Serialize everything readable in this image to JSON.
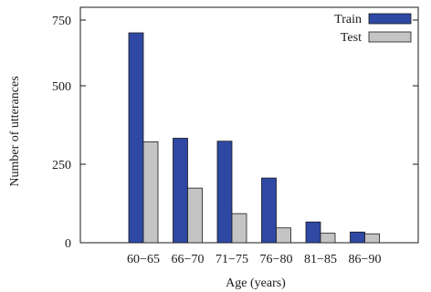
{
  "chart_data": {
    "type": "bar",
    "categories": [
      "60−65",
      "66−70",
      "71−75",
      "76−80",
      "81−85",
      "86−90"
    ],
    "series": [
      {
        "name": "Train",
        "values": [
          707,
          352,
          342,
          218,
          70,
          36
        ],
        "color": "#2e48a4"
      },
      {
        "name": "Test",
        "values": [
          340,
          184,
          98,
          50,
          32,
          30
        ],
        "color": "#c4c4c4"
      }
    ],
    "title": "",
    "xlabel": "Age (years)",
    "ylabel": "Number of utterances",
    "ylim": [
      0,
      750
    ],
    "yticks": [
      0,
      250,
      500,
      750
    ],
    "grid": false,
    "legend_position": "top-right"
  }
}
